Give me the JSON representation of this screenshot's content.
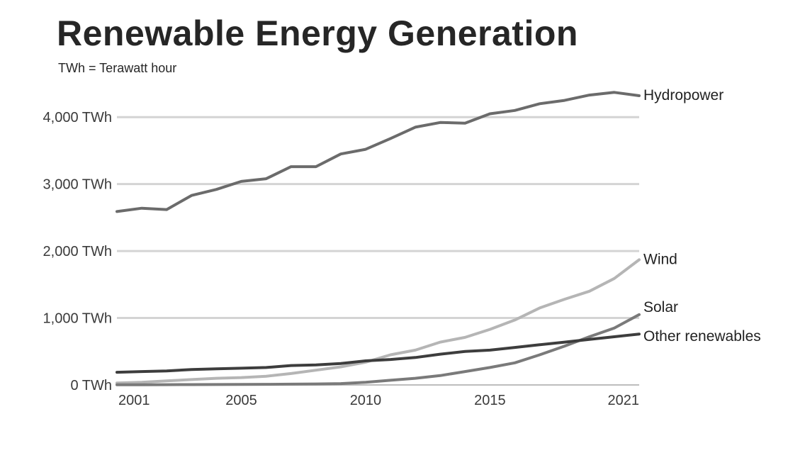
{
  "chart_data": {
    "type": "line",
    "title": "Renewable Energy Generation",
    "subtitle": "TWh = Terawatt hour",
    "xlabel": "",
    "ylabel": "",
    "xlim": [
      2000,
      2021
    ],
    "ylim": [
      0,
      4500
    ],
    "x_ticks": [
      {
        "value": 2001,
        "label": "2001"
      },
      {
        "value": 2005,
        "label": "2005"
      },
      {
        "value": 2010,
        "label": "2010"
      },
      {
        "value": 2015,
        "label": "2015"
      },
      {
        "value": 2021,
        "label": "2021"
      }
    ],
    "y_ticks": [
      {
        "value": 0,
        "label": "0 TWh"
      },
      {
        "value": 1000,
        "label": "1,000 TWh"
      },
      {
        "value": 2000,
        "label": "2,000 TWh"
      },
      {
        "value": 3000,
        "label": "3,000 TWh"
      },
      {
        "value": 4000,
        "label": "4,000 TWh"
      }
    ],
    "grid": true,
    "legend": "direct labels at line ends",
    "x": [
      2000,
      2001,
      2002,
      2003,
      2004,
      2005,
      2006,
      2007,
      2008,
      2009,
      2010,
      2011,
      2012,
      2013,
      2014,
      2015,
      2016,
      2017,
      2018,
      2019,
      2020,
      2021
    ],
    "series": [
      {
        "name": "Hydropower",
        "color": "#6b6b6b",
        "values": [
          2590,
          2640,
          2620,
          2830,
          2920,
          3040,
          3080,
          3260,
          3260,
          3450,
          3520,
          3680,
          3850,
          3920,
          3910,
          4050,
          4100,
          4200,
          4250,
          4330,
          4370,
          4320
        ]
      },
      {
        "name": "Wind",
        "color": "#b5b5b5",
        "values": [
          30,
          40,
          60,
          80,
          100,
          110,
          130,
          170,
          220,
          270,
          340,
          450,
          520,
          640,
          710,
          830,
          970,
          1150,
          1280,
          1400,
          1590,
          1870
        ]
      },
      {
        "name": "Solar",
        "color": "#7a7a7a",
        "values": [
          2,
          3,
          4,
          5,
          6,
          8,
          10,
          12,
          15,
          20,
          40,
          70,
          100,
          140,
          200,
          260,
          330,
          450,
          580,
          720,
          850,
          1050
        ]
      },
      {
        "name": "Other renewables",
        "color": "#3d3d3d",
        "values": [
          190,
          200,
          210,
          230,
          240,
          250,
          260,
          290,
          300,
          320,
          360,
          380,
          410,
          460,
          500,
          520,
          560,
          600,
          640,
          680,
          720,
          760
        ]
      }
    ]
  }
}
